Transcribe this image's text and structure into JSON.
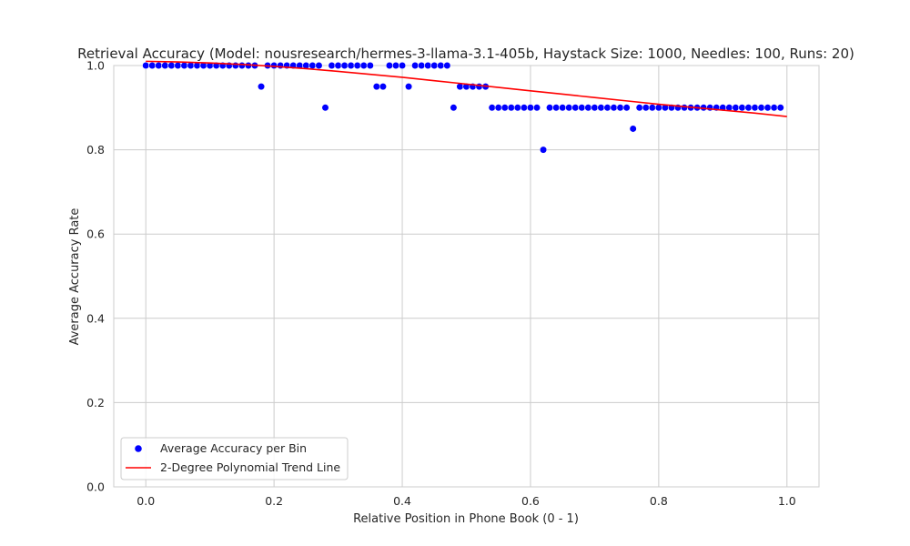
{
  "chart_data": {
    "type": "scatter",
    "title": "Retrieval Accuracy (Model: nousresearch/hermes-3-llama-3.1-405b, Haystack Size: 1000, Needles: 100, Runs: 20)",
    "xlabel": "Relative Position in Phone Book (0 - 1)",
    "ylabel": "Average Accuracy Rate",
    "xlim": [
      -0.05,
      1.05
    ],
    "ylim": [
      0.0,
      1.0
    ],
    "xticks": [
      0.0,
      0.2,
      0.4,
      0.6,
      0.8,
      1.0
    ],
    "xtick_labels": [
      "0.0",
      "0.2",
      "0.4",
      "0.6",
      "0.8",
      "1.0"
    ],
    "yticks": [
      0.0,
      0.2,
      0.4,
      0.6,
      0.8,
      1.0
    ],
    "ytick_labels": [
      "0.0",
      "0.2",
      "0.4",
      "0.6",
      "0.8",
      "1.0"
    ],
    "grid": true,
    "legend_position": "lower-left",
    "series": [
      {
        "name": "Average Accuracy per Bin",
        "kind": "scatter",
        "color": "#0000ff",
        "x": [
          0.0,
          0.01,
          0.02,
          0.03,
          0.04,
          0.05,
          0.06,
          0.07,
          0.08,
          0.09,
          0.1,
          0.11,
          0.12,
          0.13,
          0.14,
          0.15,
          0.16,
          0.17,
          0.18,
          0.19,
          0.2,
          0.21,
          0.22,
          0.23,
          0.24,
          0.25,
          0.26,
          0.27,
          0.28,
          0.29,
          0.3,
          0.31,
          0.32,
          0.33,
          0.34,
          0.35,
          0.36,
          0.37,
          0.38,
          0.39,
          0.4,
          0.41,
          0.42,
          0.43,
          0.44,
          0.45,
          0.46,
          0.47,
          0.48,
          0.49,
          0.5,
          0.51,
          0.52,
          0.53,
          0.54,
          0.55,
          0.56,
          0.57,
          0.58,
          0.59,
          0.6,
          0.61,
          0.62,
          0.63,
          0.64,
          0.65,
          0.66,
          0.67,
          0.68,
          0.69,
          0.7,
          0.71,
          0.72,
          0.73,
          0.74,
          0.75,
          0.76,
          0.77,
          0.78,
          0.79,
          0.8,
          0.81,
          0.82,
          0.83,
          0.84,
          0.85,
          0.86,
          0.87,
          0.88,
          0.89,
          0.9,
          0.91,
          0.92,
          0.93,
          0.94,
          0.95,
          0.96,
          0.97,
          0.98,
          0.99
        ],
        "y": [
          1.0,
          1.0,
          1.0,
          1.0,
          1.0,
          1.0,
          1.0,
          1.0,
          1.0,
          1.0,
          1.0,
          1.0,
          1.0,
          1.0,
          1.0,
          1.0,
          1.0,
          1.0,
          0.95,
          1.0,
          1.0,
          1.0,
          1.0,
          1.0,
          1.0,
          1.0,
          1.0,
          1.0,
          0.9,
          1.0,
          1.0,
          1.0,
          1.0,
          1.0,
          1.0,
          1.0,
          0.95,
          0.95,
          1.0,
          1.0,
          1.0,
          0.95,
          1.0,
          1.0,
          1.0,
          1.0,
          1.0,
          1.0,
          0.9,
          0.95,
          0.95,
          0.95,
          0.95,
          0.95,
          0.9,
          0.9,
          0.9,
          0.9,
          0.9,
          0.9,
          0.9,
          0.9,
          0.8,
          0.9,
          0.9,
          0.9,
          0.9,
          0.9,
          0.9,
          0.9,
          0.9,
          0.9,
          0.9,
          0.9,
          0.9,
          0.9,
          0.85,
          0.9,
          0.9,
          0.9,
          0.9,
          0.9,
          0.9,
          0.9,
          0.9,
          0.9,
          0.9,
          0.9,
          0.9,
          0.9,
          0.9,
          0.9,
          0.9,
          0.9,
          0.9,
          0.9,
          0.9,
          0.9,
          0.9,
          0.9
        ]
      },
      {
        "name": "2-Degree Polynomial Trend Line",
        "kind": "line",
        "color": "#ff0000",
        "x": [
          0.0,
          0.05,
          0.1,
          0.15,
          0.2,
          0.25,
          0.3,
          0.35,
          0.4,
          0.45,
          0.5,
          0.55,
          0.6,
          0.65,
          0.7,
          0.75,
          0.8,
          0.85,
          0.9,
          0.95,
          1.0
        ],
        "y": [
          1.01,
          1.0085,
          1.006,
          1.0025,
          0.998,
          0.9925,
          0.986,
          0.979,
          0.972,
          0.964,
          0.956,
          0.948,
          0.94,
          0.932,
          0.924,
          0.916,
          0.908,
          0.901,
          0.894,
          0.887,
          0.879
        ]
      }
    ]
  }
}
